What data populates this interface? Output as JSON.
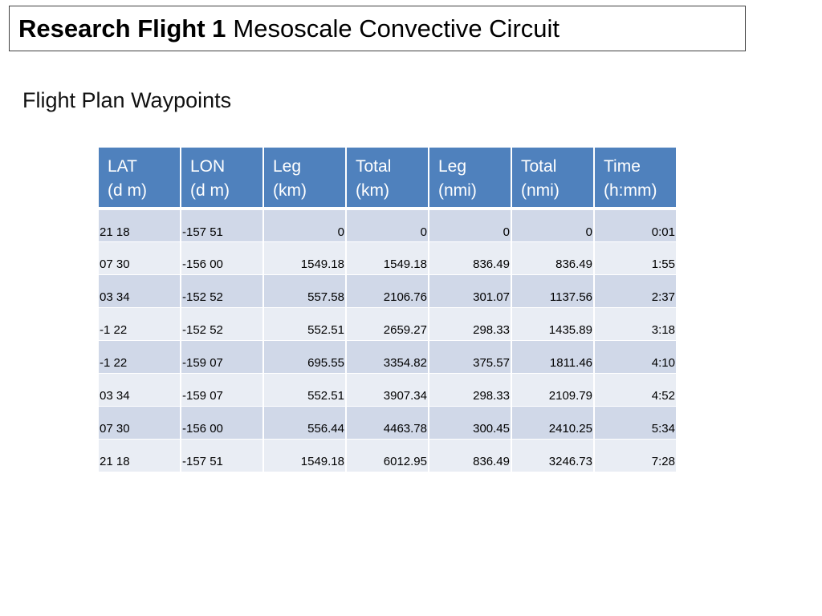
{
  "header": {
    "title_bold": "Research Flight 1",
    "title_rest": "Mesoscale Convective Circuit"
  },
  "section": {
    "subtitle": "Flight Plan Waypoints"
  },
  "table": {
    "columns": [
      "LAT\n(d m)",
      "LON\n(d m)",
      "Leg\n(km)",
      "Total\n(km)",
      "Leg\n(nmi)",
      "Total\n(nmi)",
      "Time\n(h:mm)"
    ],
    "rows": [
      [
        "21 18",
        "-157 51",
        "0",
        "0",
        "0",
        "0",
        "0:01"
      ],
      [
        "07 30",
        "-156 00",
        "1549.18",
        "1549.18",
        "836.49",
        "836.49",
        "1:55"
      ],
      [
        "03 34",
        "-152 52",
        "557.58",
        "2106.76",
        "301.07",
        "1137.56",
        "2:37"
      ],
      [
        "-1 22",
        "-152 52",
        "552.51",
        "2659.27",
        "298.33",
        "1435.89",
        "3:18"
      ],
      [
        "-1 22",
        "-159 07",
        "695.55",
        "3354.82",
        "375.57",
        "1811.46",
        "4:10"
      ],
      [
        "03 34",
        "-159 07",
        "552.51",
        "3907.34",
        "298.33",
        "2109.79",
        "4:52"
      ],
      [
        "07 30",
        "-156 00",
        "556.44",
        "4463.78",
        "300.45",
        "2410.25",
        "5:34"
      ],
      [
        "21 18",
        "-157 51",
        "1549.18",
        "6012.95",
        "836.49",
        "3246.73",
        "7:28"
      ]
    ],
    "header_color": "#4f81bd",
    "row_color_odd": "#d0d8e8",
    "row_color_even": "#e9edf4"
  }
}
